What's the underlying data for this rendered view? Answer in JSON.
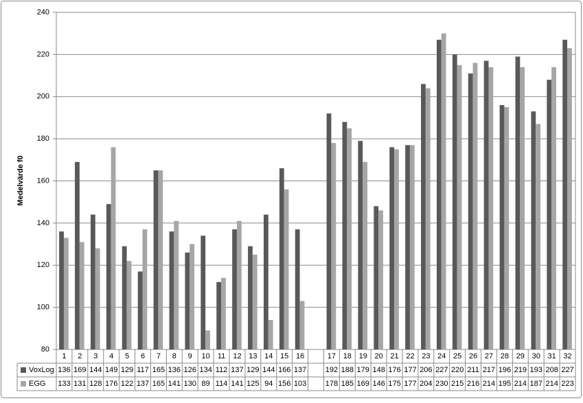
{
  "chart_data": {
    "type": "bar",
    "y_label": "Medelvärde f0",
    "categories": [
      "1",
      "2",
      "3",
      "4",
      "5",
      "6",
      "7",
      "8",
      "9",
      "10",
      "11",
      "12",
      "13",
      "14",
      "15",
      "16",
      null,
      "17",
      "18",
      "19",
      "20",
      "21",
      "22",
      "23",
      "24",
      "25",
      "26",
      "27",
      "28",
      "29",
      "30",
      "31",
      "32"
    ],
    "series": [
      {
        "name": "VoxLog",
        "color": "#595959",
        "values": [
          136,
          169,
          144,
          149,
          129,
          117,
          165,
          136,
          126,
          134,
          112,
          137,
          129,
          144,
          166,
          137,
          null,
          192,
          188,
          179,
          148,
          176,
          177,
          206,
          227,
          220,
          211,
          217,
          196,
          219,
          193,
          208,
          227
        ]
      },
      {
        "name": "EGG",
        "color": "#a6a6a6",
        "values": [
          133,
          131,
          128,
          176,
          122,
          137,
          165,
          141,
          130,
          89,
          114,
          141,
          125,
          94,
          156,
          103,
          null,
          178,
          185,
          169,
          146,
          175,
          177,
          204,
          230,
          215,
          216,
          214,
          195,
          214,
          187,
          214,
          223
        ]
      }
    ],
    "ylim": [
      80,
      240
    ],
    "yticks": [
      80,
      100,
      120,
      140,
      160,
      180,
      200,
      220,
      240
    ],
    "grid": true
  }
}
